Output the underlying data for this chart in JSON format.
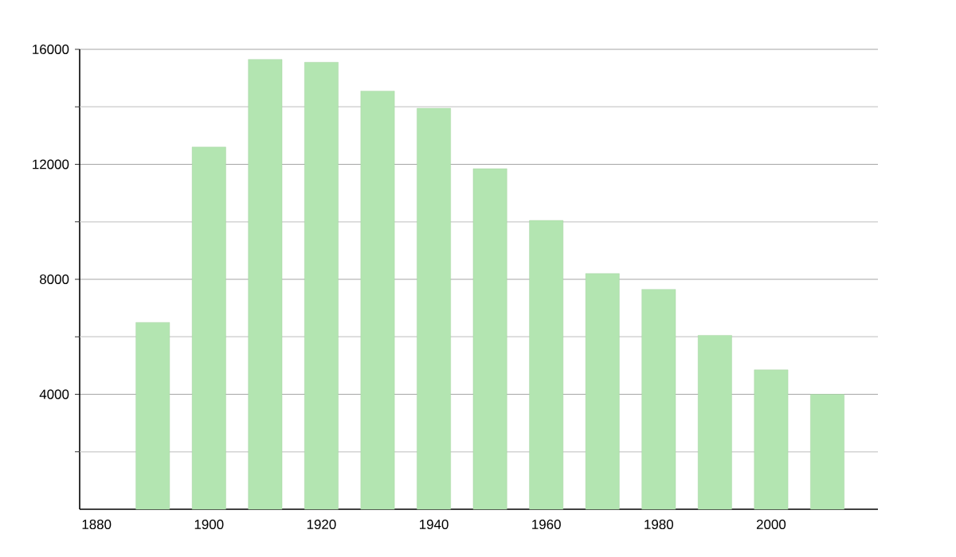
{
  "chart_data": {
    "type": "bar",
    "x": [
      1890,
      1900,
      1910,
      1920,
      1930,
      1940,
      1950,
      1960,
      1970,
      1980,
      1990,
      2000,
      2010
    ],
    "values": [
      6500,
      12600,
      15650,
      15550,
      14550,
      13950,
      11850,
      10050,
      8200,
      7650,
      6050,
      4850,
      4000
    ],
    "color": "#b3e5b1",
    "xlim": [
      1877,
      2019
    ],
    "xticks": [
      1880,
      1900,
      1920,
      1940,
      1960,
      1980,
      2000
    ],
    "ylim": [
      0,
      16000
    ],
    "yticks": [
      {
        "value": 2000,
        "label": null
      },
      4000,
      {
        "value": 6000,
        "label": null
      },
      8000,
      {
        "value": 10000,
        "label": null
      },
      12000,
      {
        "value": 14000,
        "label": null
      },
      16000
    ],
    "grid": "y"
  }
}
